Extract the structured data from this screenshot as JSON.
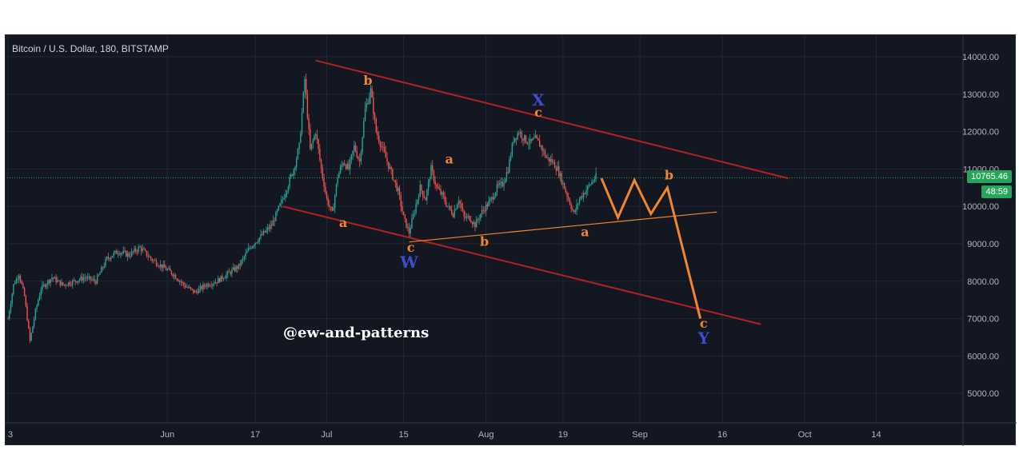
{
  "chart_data": {
    "type": "candlestick",
    "title": "Bitcoin / U.S. Dollar, 180, BITSTAMP",
    "ylim": [
      4200,
      14500
    ],
    "y_ticks": [
      "14000.00",
      "13000.00",
      "12000.00",
      "11000.00",
      "10000.00",
      "9000.00",
      "8000.00",
      "7000.00",
      "6000.00",
      "5000.00"
    ],
    "x_ticks": [
      "3",
      "Jun",
      "17",
      "Jul",
      "15",
      "Aug",
      "19",
      "Sep",
      "16",
      "Oct",
      "14"
    ],
    "x_tick_days": [
      0,
      29,
      45,
      58,
      72,
      87,
      101,
      115,
      130,
      145,
      158
    ],
    "last_price": "10765.46",
    "countdown": "48:59",
    "price_path": [
      [
        0,
        7000
      ],
      [
        1,
        7900
      ],
      [
        2,
        8200
      ],
      [
        3,
        7600
      ],
      [
        4,
        6400
      ],
      [
        5,
        7200
      ],
      [
        6,
        7800
      ],
      [
        8,
        8100
      ],
      [
        10,
        7900
      ],
      [
        12,
        8000
      ],
      [
        14,
        8100
      ],
      [
        16,
        8000
      ],
      [
        18,
        8600
      ],
      [
        20,
        8800
      ],
      [
        22,
        8700
      ],
      [
        24,
        8900
      ],
      [
        26,
        8600
      ],
      [
        28,
        8400
      ],
      [
        30,
        8200
      ],
      [
        32,
        7900
      ],
      [
        34,
        7700
      ],
      [
        36,
        7900
      ],
      [
        38,
        8000
      ],
      [
        40,
        8200
      ],
      [
        42,
        8400
      ],
      [
        44,
        8900
      ],
      [
        46,
        9200
      ],
      [
        48,
        9500
      ],
      [
        50,
        10200
      ],
      [
        52,
        11000
      ],
      [
        53,
        11600
      ],
      [
        54,
        13400
      ],
      [
        55,
        11500
      ],
      [
        56,
        12000
      ],
      [
        57,
        11000
      ],
      [
        58,
        10200
      ],
      [
        59,
        9800
      ],
      [
        60,
        10800
      ],
      [
        61,
        11200
      ],
      [
        62,
        11000
      ],
      [
        63,
        11600
      ],
      [
        64,
        11200
      ],
      [
        65,
        12600
      ],
      [
        66,
        13100
      ],
      [
        67,
        12000
      ],
      [
        68,
        11600
      ],
      [
        69,
        11200
      ],
      [
        70,
        10800
      ],
      [
        71,
        10400
      ],
      [
        72,
        9700
      ],
      [
        73,
        9300
      ],
      [
        74,
        9900
      ],
      [
        75,
        10500
      ],
      [
        76,
        10200
      ],
      [
        77,
        11000
      ],
      [
        78,
        10500
      ],
      [
        79,
        10300
      ],
      [
        80,
        10000
      ],
      [
        81,
        9800
      ],
      [
        82,
        10200
      ],
      [
        83,
        9700
      ],
      [
        84,
        9700
      ],
      [
        85,
        9500
      ],
      [
        86,
        9800
      ],
      [
        87,
        10000
      ],
      [
        88,
        10200
      ],
      [
        89,
        10500
      ],
      [
        90,
        10600
      ],
      [
        91,
        11000
      ],
      [
        92,
        11800
      ],
      [
        93,
        12000
      ],
      [
        94,
        11800
      ],
      [
        95,
        11700
      ],
      [
        96,
        11800
      ],
      [
        97,
        11600
      ],
      [
        98,
        11300
      ],
      [
        99,
        11200
      ],
      [
        100,
        11000
      ],
      [
        101,
        10600
      ],
      [
        102,
        10200
      ],
      [
        103,
        9800
      ],
      [
        104,
        10200
      ],
      [
        105,
        10400
      ],
      [
        106,
        10600
      ],
      [
        107,
        10800
      ]
    ],
    "drawings": {
      "channel_upper": [
        [
          56,
          13900
        ],
        [
          142,
          10750
        ]
      ],
      "channel_lower": [
        [
          50,
          10000
        ],
        [
          137,
          6850
        ]
      ],
      "triangle_line": [
        [
          73,
          9050
        ],
        [
          129,
          9850
        ]
      ],
      "projection": [
        [
          108,
          10750
        ],
        [
          111,
          9700
        ],
        [
          114,
          10700
        ],
        [
          117,
          9800
        ],
        [
          120,
          10500
        ],
        [
          126,
          7000
        ]
      ]
    },
    "wave_labels": [
      {
        "text": "b",
        "color": "orange",
        "x": 65.5,
        "y": 13250
      },
      {
        "text": "a",
        "color": "orange",
        "x": 61,
        "y": 9450
      },
      {
        "text": "a",
        "color": "orange",
        "x": 80.3,
        "y": 11150
      },
      {
        "text": "c",
        "color": "orange",
        "x": 96.5,
        "y": 12400
      },
      {
        "text": "X",
        "color": "blue",
        "x": 96.5,
        "y": 12700
      },
      {
        "text": "c",
        "color": "orange",
        "x": 73.3,
        "y": 8790
      },
      {
        "text": "W",
        "color": "blue",
        "x": 73,
        "y": 8360
      },
      {
        "text": "b",
        "color": "orange",
        "x": 86.7,
        "y": 8950
      },
      {
        "text": "a",
        "color": "orange",
        "x": 105,
        "y": 9200
      },
      {
        "text": "b",
        "color": "orange",
        "x": 120.3,
        "y": 10720
      },
      {
        "text": "c",
        "color": "orange",
        "x": 126.6,
        "y": 6760
      },
      {
        "text": "Y",
        "color": "blue",
        "x": 126.6,
        "y": 6330
      }
    ],
    "watermark": "@ew-and-patterns"
  }
}
